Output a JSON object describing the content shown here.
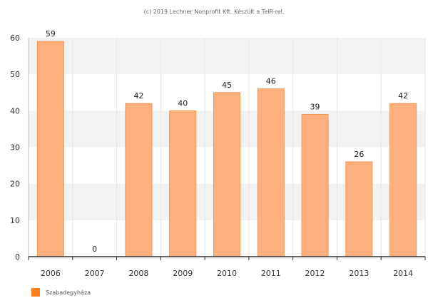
{
  "credit": "(c) 2019 Lechner Nonprofit Kft. Készült a TeIR-rel.",
  "chart_data": {
    "type": "bar",
    "categories": [
      "2006",
      "2007",
      "2008",
      "2009",
      "2010",
      "2011",
      "2012",
      "2013",
      "2014"
    ],
    "series": [
      {
        "name": "Szabadegyháza",
        "values": [
          59,
          0,
          42,
          40,
          45,
          46,
          39,
          26,
          42
        ]
      }
    ],
    "ylim": [
      0,
      60
    ],
    "yticks": [
      0,
      10,
      20,
      30,
      40,
      50,
      60
    ],
    "data_labels": true,
    "legend_position": "bottom-left",
    "colors": {
      "bar_fill": "#fdb07e",
      "bar_stroke": "#f29a55",
      "legend_swatch": "#ff7f1a",
      "band": "#f2f2f2"
    }
  }
}
